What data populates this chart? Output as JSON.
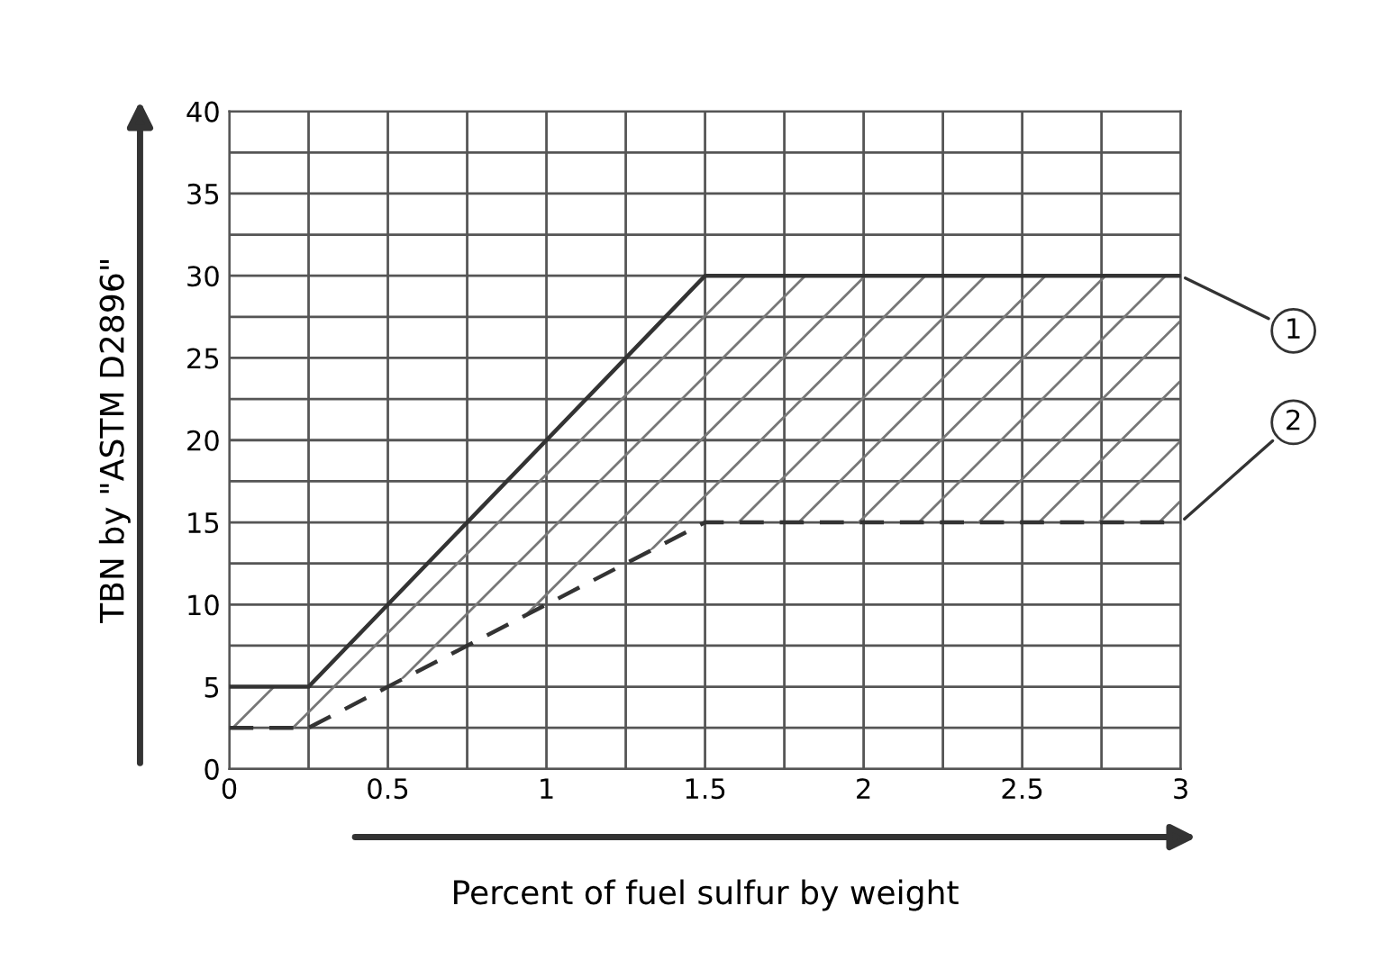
{
  "chart_data": {
    "type": "line",
    "xlabel": "Percent of fuel sulfur by weight",
    "ylabel": "TBN by \"ASTM D2896\"",
    "xlim": [
      0,
      3
    ],
    "ylim": [
      0,
      40
    ],
    "xticks": [
      0,
      {
        "value": 0.25,
        "label": null
      },
      0.5,
      {
        "value": 0.75,
        "label": null
      },
      1,
      {
        "value": 1.25,
        "label": null
      },
      1.5,
      {
        "value": 1.75,
        "label": null
      },
      2,
      {
        "value": 2.25,
        "label": null
      },
      2.5,
      {
        "value": 2.75,
        "label": null
      },
      3
    ],
    "yticks": [
      0,
      {
        "value": 2.5,
        "label": null
      },
      5,
      {
        "value": 7.5,
        "label": null
      },
      10,
      {
        "value": 12.5,
        "label": null
      },
      15,
      {
        "value": 17.5,
        "label": null
      },
      20,
      {
        "value": 22.5,
        "label": null
      },
      25,
      {
        "value": 27.5,
        "label": null
      },
      30,
      {
        "value": 32.5,
        "label": null
      },
      35,
      {
        "value": 37.5,
        "label": null
      },
      40
    ],
    "grid": true,
    "series": [
      {
        "color": "#333333",
        "line_style": "solid",
        "x": [
          0,
          0.25,
          1.5,
          3
        ],
        "values": [
          5,
          5,
          30,
          30
        ],
        "lower": [
          2.5,
          2.5,
          15,
          15
        ],
        "upper": [
          5,
          5,
          30,
          30
        ]
      },
      {
        "color": "#333333",
        "line_style": "dashed",
        "x": [
          0,
          0.25,
          1.5,
          3
        ],
        "values": [
          2.5,
          2.5,
          15,
          15
        ]
      }
    ],
    "annotations": [
      {
        "text": "1",
        "x": 3,
        "y": 30
      },
      {
        "text": "2",
        "x": 3,
        "y": 15
      }
    ]
  }
}
